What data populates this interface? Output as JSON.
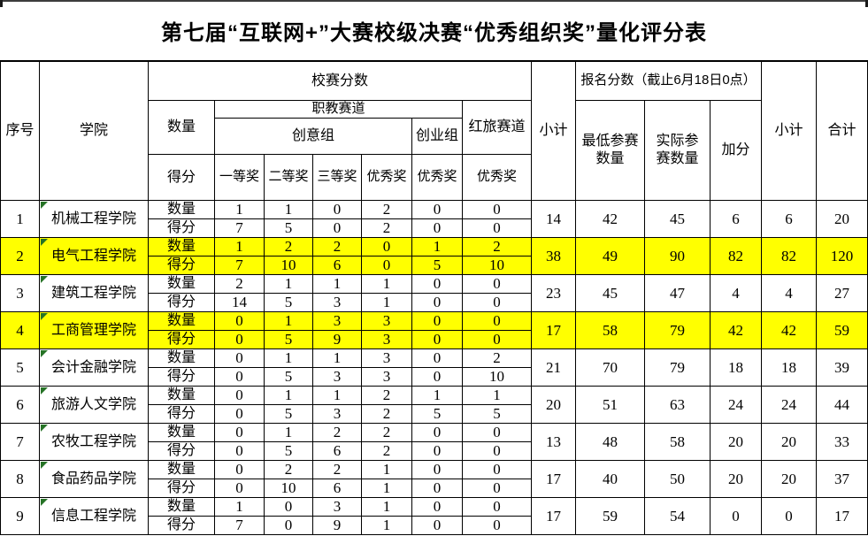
{
  "title": "第七届“互联网+”大赛校级决赛“优秀组织奖”量化评分表",
  "header": {
    "no": "序号",
    "college": "学院",
    "school_score": "校赛分数",
    "quantity": "数量",
    "score": "得分",
    "vocational_track": "职教赛道",
    "creative_group": "创意组",
    "startup_group": "创业组",
    "red_tour_track": "红旅赛道",
    "first_prize": "一等奖",
    "second_prize": "二等奖",
    "third_prize": "三等奖",
    "excellence_prize_creative": "优秀奖",
    "excellence_prize_startup": "优秀奖",
    "excellence_prize_red": "优秀奖",
    "subtotal_school": "小计",
    "registration_score": "报名分数（截止6月18日0点）",
    "min_entries": "最低参赛数量",
    "actual_entries": "实际参赛数量",
    "bonus": "加分",
    "subtotal_registration": "小计",
    "total": "合计"
  },
  "row_labels": {
    "quantity": "数量",
    "score": "得分"
  },
  "colors": {
    "highlight": "#FFFF00",
    "grid_line": "#000000",
    "flag_green": "#267326"
  },
  "rows": [
    {
      "no": "1",
      "college": "机械工程学院",
      "highlight": false,
      "quantity": [
        1,
        1,
        0,
        2,
        0,
        0
      ],
      "score": [
        7,
        5,
        0,
        2,
        0,
        0
      ],
      "subtotal": 14,
      "min_entries": 42,
      "actual_entries": 45,
      "bonus": 6,
      "subtotal2": 6,
      "total": 20
    },
    {
      "no": "2",
      "college": "电气工程学院",
      "highlight": true,
      "quantity": [
        1,
        2,
        2,
        0,
        1,
        2
      ],
      "score": [
        7,
        10,
        6,
        0,
        5,
        10
      ],
      "subtotal": 38,
      "min_entries": 49,
      "actual_entries": 90,
      "bonus": 82,
      "subtotal2": 82,
      "total": 120
    },
    {
      "no": "3",
      "college": "建筑工程学院",
      "highlight": false,
      "quantity": [
        2,
        1,
        1,
        1,
        0,
        0
      ],
      "score": [
        14,
        5,
        3,
        1,
        0,
        0
      ],
      "subtotal": 23,
      "min_entries": 45,
      "actual_entries": 47,
      "bonus": 4,
      "subtotal2": 4,
      "total": 27
    },
    {
      "no": "4",
      "college": "工商管理学院",
      "highlight": true,
      "quantity": [
        0,
        1,
        3,
        3,
        0,
        0
      ],
      "score": [
        0,
        5,
        9,
        3,
        0,
        0
      ],
      "subtotal": 17,
      "min_entries": 58,
      "actual_entries": 79,
      "bonus": 42,
      "subtotal2": 42,
      "total": 59
    },
    {
      "no": "5",
      "college": "会计金融学院",
      "highlight": false,
      "quantity": [
        0,
        1,
        1,
        3,
        0,
        2
      ],
      "score": [
        0,
        5,
        3,
        3,
        0,
        10
      ],
      "subtotal": 21,
      "min_entries": 70,
      "actual_entries": 79,
      "bonus": 18,
      "subtotal2": 18,
      "total": 39
    },
    {
      "no": "6",
      "college": "旅游人文学院",
      "highlight": false,
      "quantity": [
        0,
        1,
        1,
        2,
        1,
        1
      ],
      "score": [
        0,
        5,
        3,
        2,
        5,
        5
      ],
      "subtotal": 20,
      "min_entries": 51,
      "actual_entries": 63,
      "bonus": 24,
      "subtotal2": 24,
      "total": 44
    },
    {
      "no": "7",
      "college": "农牧工程学院",
      "highlight": false,
      "quantity": [
        0,
        1,
        2,
        2,
        0,
        0
      ],
      "score": [
        0,
        5,
        6,
        2,
        0,
        0
      ],
      "subtotal": 13,
      "min_entries": 48,
      "actual_entries": 58,
      "bonus": 20,
      "subtotal2": 20,
      "total": 33
    },
    {
      "no": "8",
      "college": "食品药品学院",
      "highlight": false,
      "quantity": [
        0,
        2,
        2,
        1,
        0,
        0
      ],
      "score": [
        0,
        10,
        6,
        1,
        0,
        0
      ],
      "subtotal": 17,
      "min_entries": 40,
      "actual_entries": 50,
      "bonus": 20,
      "subtotal2": 20,
      "total": 37
    },
    {
      "no": "9",
      "college": "信息工程学院",
      "highlight": false,
      "quantity": [
        1,
        0,
        3,
        1,
        0,
        0
      ],
      "score": [
        7,
        0,
        9,
        1,
        0,
        0
      ],
      "subtotal": 17,
      "min_entries": 59,
      "actual_entries": 54,
      "bonus": 0,
      "subtotal2": 0,
      "total": 17
    }
  ]
}
